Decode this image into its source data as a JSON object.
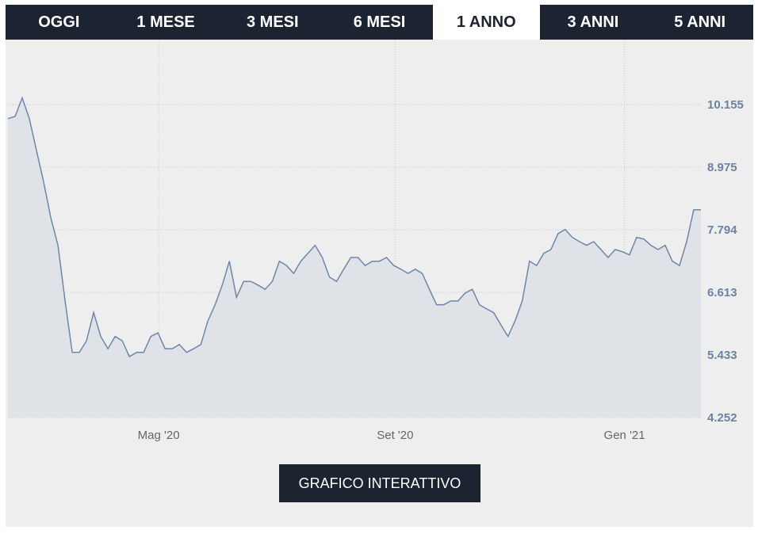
{
  "tabs": [
    "OGGI",
    "1 MESE",
    "3 MESI",
    "6 MESI",
    "1 ANNO",
    "3 ANNI",
    "5 ANNI"
  ],
  "active_tab": 4,
  "chart_data": {
    "type": "area",
    "values": [
      9.89,
      9.93,
      10.28,
      9.89,
      9.29,
      8.69,
      8.02,
      7.5,
      6.45,
      5.48,
      5.48,
      5.7,
      6.23,
      5.78,
      5.55,
      5.78,
      5.7,
      5.4,
      5.48,
      5.48,
      5.78,
      5.85,
      5.55,
      5.55,
      5.63,
      5.48,
      5.55,
      5.63,
      6.08,
      6.38,
      6.75,
      7.2,
      6.52,
      6.82,
      6.82,
      6.75,
      6.67,
      6.82,
      7.2,
      7.12,
      6.97,
      7.2,
      7.35,
      7.5,
      7.27,
      6.9,
      6.82,
      7.05,
      7.27,
      7.27,
      7.12,
      7.2,
      7.2,
      7.27,
      7.12,
      7.05,
      6.97,
      7.05,
      6.97,
      6.67,
      6.38,
      6.38,
      6.45,
      6.45,
      6.6,
      6.67,
      6.38,
      6.3,
      6.23,
      6.0,
      5.78,
      6.08,
      6.45,
      7.2,
      7.12,
      7.35,
      7.42,
      7.72,
      7.8,
      7.65,
      7.57,
      7.5,
      7.57,
      7.42,
      7.27,
      7.42,
      7.38,
      7.32,
      7.65,
      7.62,
      7.5,
      7.42,
      7.5,
      7.2,
      7.12,
      7.57,
      8.17,
      8.17
    ],
    "color": "#6d87a8",
    "xlim": [
      0,
      97
    ],
    "xticks": [
      {
        "value": 21.1,
        "label": "Mag '20"
      },
      {
        "value": 54.2,
        "label": "Set '20"
      },
      {
        "value": 86.3,
        "label": "Gen '21"
      }
    ],
    "ylim": [
      4.252,
      11.38
    ],
    "yticks": [
      4.252,
      5.433,
      6.613,
      7.794,
      8.975,
      10.155
    ],
    "grid": true
  },
  "button": "GRAFICO INTERATTIVO"
}
